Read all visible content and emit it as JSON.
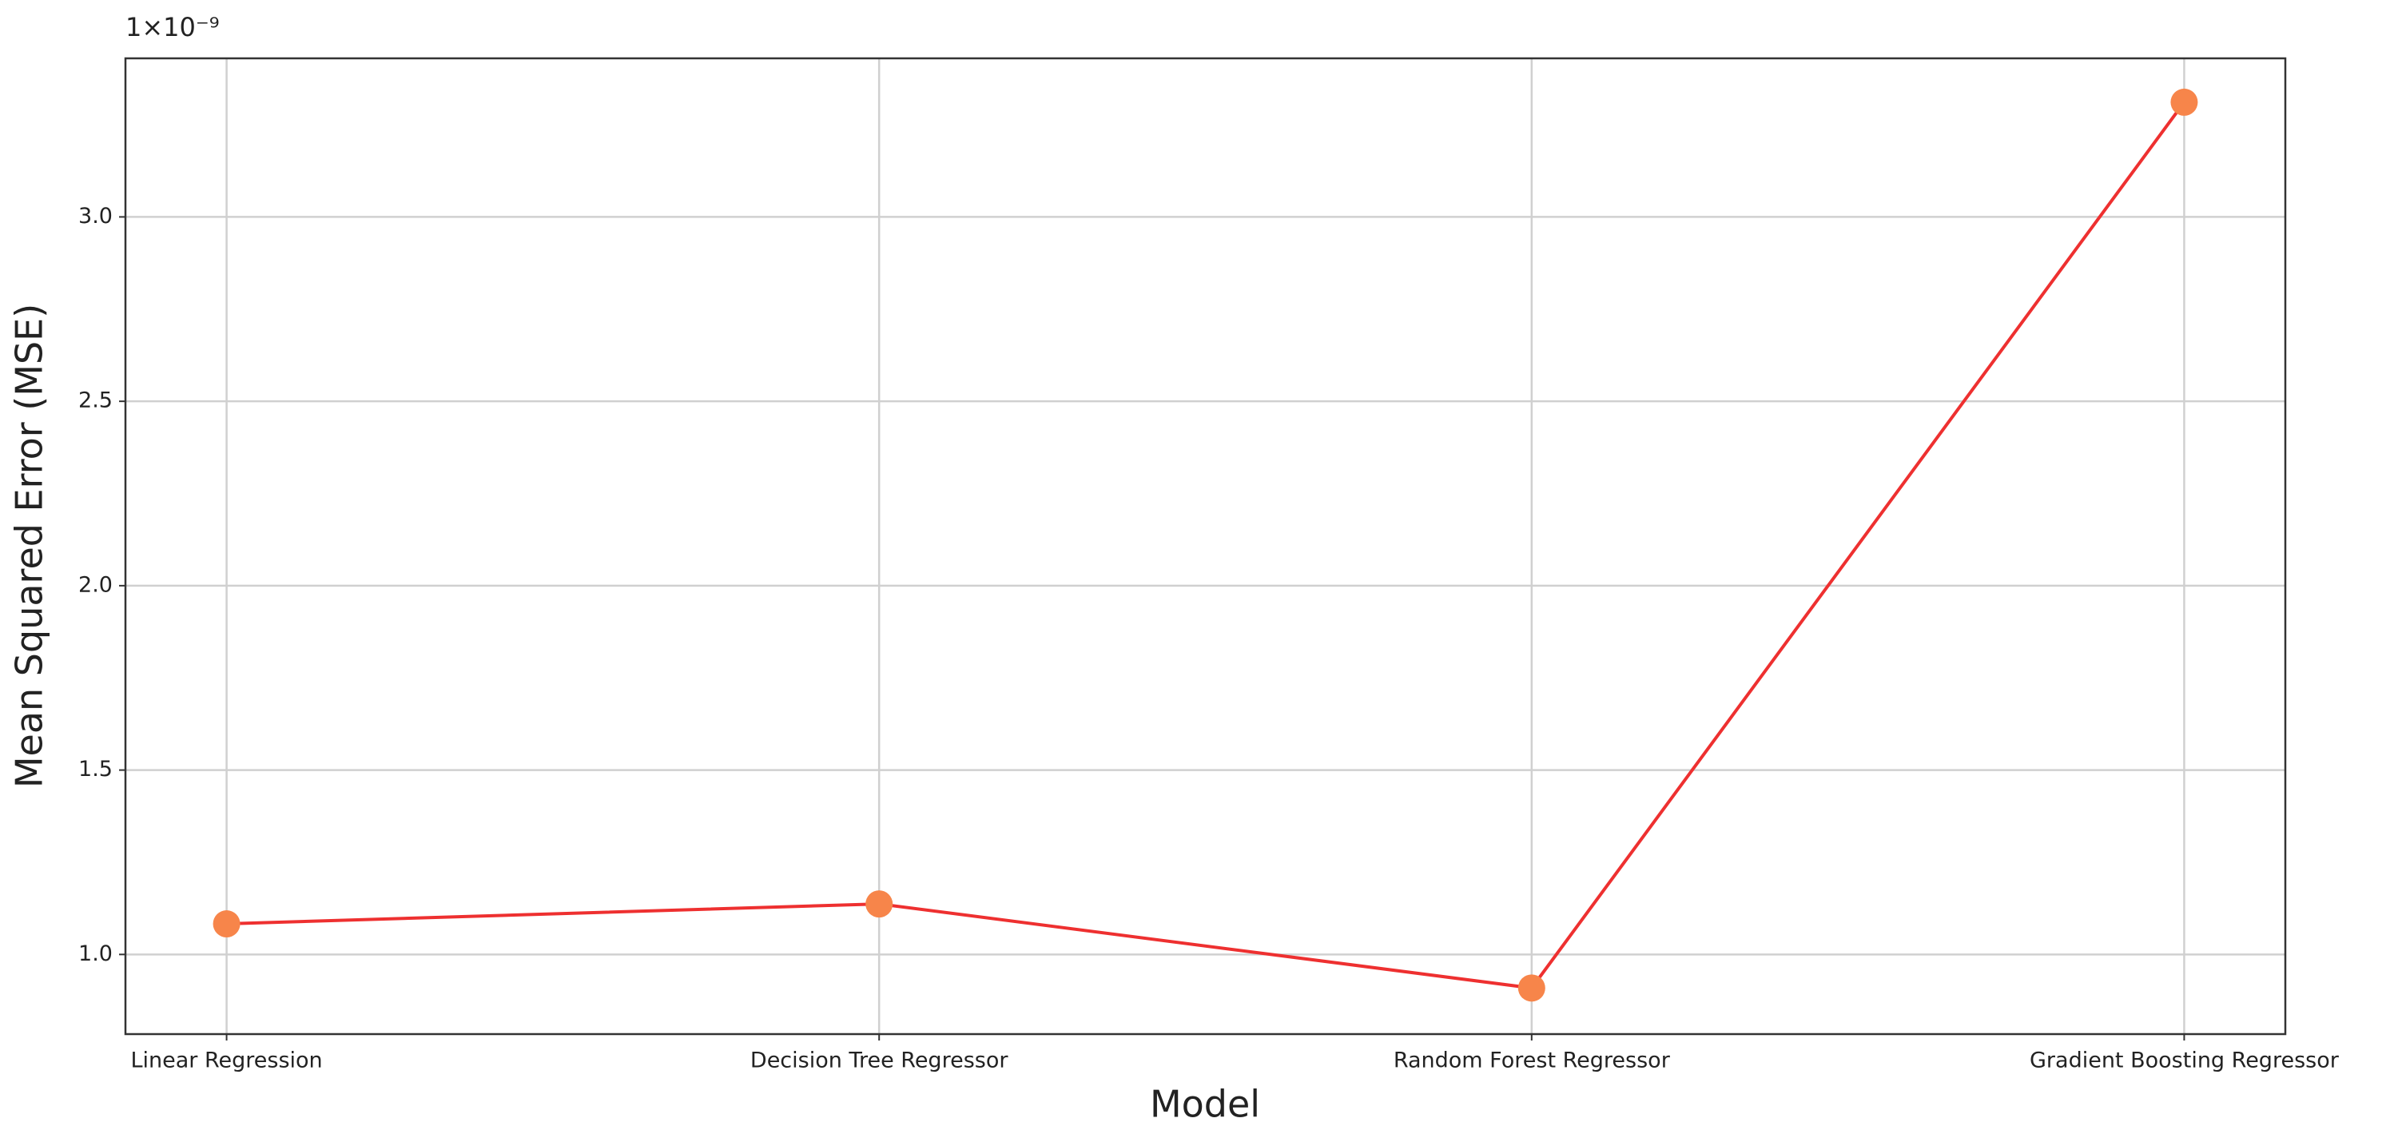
{
  "chart_data": {
    "type": "line",
    "y_scale_label": "1×10⁻⁹",
    "x_label": "Model",
    "y_label": "Mean Squared Error (MSE)",
    "categories": [
      "Linear Regression",
      "Decision Tree Regressor",
      "Random Forest Regressor",
      "Gradient Boosting Regressor"
    ],
    "series": [
      {
        "color": "#ee3030",
        "marker_color": "#f7854a",
        "values": [
          1.083,
          1.137,
          0.909,
          3.311
        ]
      }
    ],
    "ylim": [
      0.784,
      3.43
    ],
    "yticks": [
      {
        "value": 1.0,
        "label": "1.0"
      },
      {
        "value": 1.5,
        "label": "1.5"
      },
      {
        "value": 2.0,
        "label": "2.0"
      },
      {
        "value": 2.5,
        "label": "2.5"
      },
      {
        "value": 3.0,
        "label": "3.0"
      }
    ],
    "grid": true
  }
}
